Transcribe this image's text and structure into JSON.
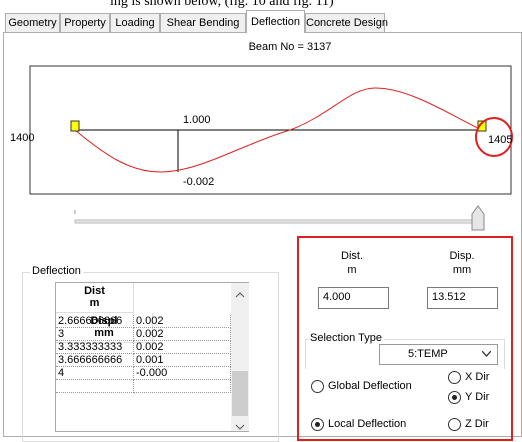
{
  "caption": "ing is shown below, (fig. 10 and fig. 11)",
  "tabs": [
    {
      "label": "Geometry",
      "active": false
    },
    {
      "label": "Property",
      "active": false
    },
    {
      "label": "Loading",
      "active": false
    },
    {
      "label": "Shear Bending",
      "active": false
    },
    {
      "label": "Deflection",
      "active": true
    },
    {
      "label": "Concrete Design",
      "active": false
    }
  ],
  "beam_label": "Beam No = 3137",
  "diagram": {
    "start_node": "1400",
    "end_node": "1405",
    "position_label": "1.000",
    "deflection_label": "-0.002"
  },
  "deflection_group": {
    "title": "Deflection",
    "columns": [
      {
        "label": "Dist",
        "unit": "m"
      },
      {
        "label": "Displ",
        "unit": "mm"
      }
    ],
    "rows": [
      [
        "2.666666666",
        "0.002"
      ],
      [
        "3",
        "0.002"
      ],
      [
        "3.333333333",
        "0.002"
      ],
      [
        "3.666666666",
        "0.001"
      ],
      [
        "4",
        "-0.000"
      ]
    ]
  },
  "fields": [
    {
      "label": "Dist.",
      "unit": "m",
      "value": "4.000"
    },
    {
      "label": "Disp.",
      "unit": "mm",
      "value": "13.512"
    }
  ],
  "selection_type": {
    "title": "Selection Type",
    "value": "5:TEMP"
  },
  "radios": [
    {
      "label": "Global Deflection",
      "checked": false
    },
    {
      "label": "Local Deflection",
      "checked": true
    }
  ],
  "direction_radios": [
    {
      "label": "X Dir",
      "checked": false
    },
    {
      "label": "Y Dir",
      "checked": true
    },
    {
      "label": "Z Dir",
      "checked": false
    }
  ]
}
